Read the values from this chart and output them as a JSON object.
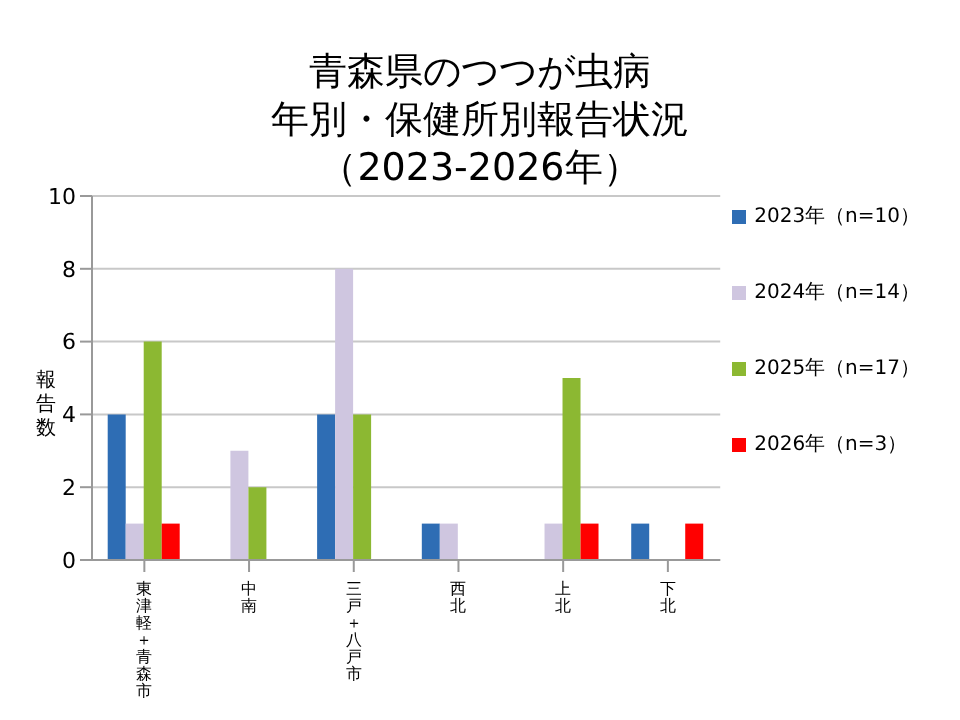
{
  "chart_data": {
    "type": "bar",
    "title": "青森県のつつが虫病",
    "subtitle": "年別・保健所別報告状況（2023-2026年）",
    "ylabel": "報告数",
    "categories": [
      "東津軽＋青森市",
      "中南",
      "三戸＋八戸市",
      "西北",
      "上北",
      "下北"
    ],
    "series": [
      {
        "name": "2023年（n=10）",
        "color": "#2e6db4",
        "values": [
          4,
          0,
          4,
          1,
          0,
          1
        ]
      },
      {
        "name": "2024年（n=14）",
        "color": "#cfc6e0",
        "values": [
          1,
          3,
          8,
          1,
          1,
          0
        ]
      },
      {
        "name": "2025年（n=17）",
        "color": "#8cb832",
        "values": [
          6,
          2,
          4,
          0,
          5,
          0
        ]
      },
      {
        "name": "2026年（n=3）",
        "color": "#ff0000",
        "values": [
          1,
          0,
          0,
          0,
          1,
          1
        ]
      }
    ],
    "ylim": [
      0,
      10
    ],
    "yticks": [
      0,
      2,
      4,
      6,
      8,
      10
    ],
    "grid": "y",
    "legend": "right"
  }
}
